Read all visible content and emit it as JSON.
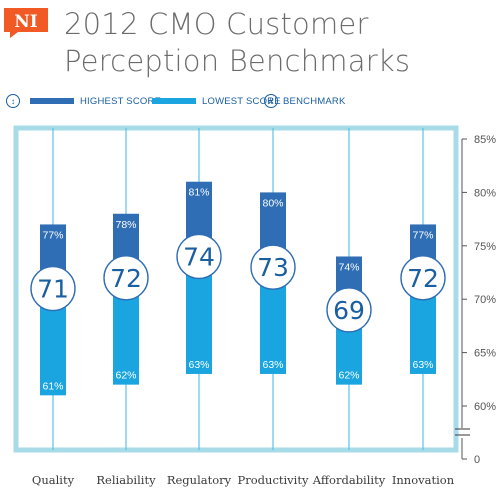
{
  "logo": {
    "text": "NI"
  },
  "header": {
    "title_line1": "2012 CMO Customer",
    "title_line2": "Perception Benchmarks"
  },
  "legend": {
    "highest": "HIGHEST SCORE",
    "lowest": "LOWEST SCORE",
    "benchmark": "BENCHMARK"
  },
  "colors": {
    "highest": "#2f6db5",
    "lowest": "#1aa5e0",
    "benchmark_text": "#1a5fa0",
    "frame": "#a6dbe7",
    "stem": "#5cc3e3",
    "logo": "#f15a24"
  },
  "chart_data": {
    "type": "range-bar",
    "title": "2012 CMO Customer Perception Benchmarks",
    "categories": [
      "Quality",
      "Reliability",
      "Regulatory",
      "Productivity",
      "Affordability",
      "Innovation"
    ],
    "series": [
      {
        "name": "HIGHEST SCORE",
        "values": [
          77,
          78,
          81,
          80,
          74,
          77
        ]
      },
      {
        "name": "LOWEST SCORE",
        "values": [
          61,
          62,
          63,
          63,
          62,
          63
        ]
      },
      {
        "name": "BENCHMARK",
        "values": [
          71,
          72,
          74,
          73,
          69,
          72
        ]
      }
    ],
    "value_labels": {
      "highest": [
        "77%",
        "78%",
        "81%",
        "80%",
        "74%",
        "77%"
      ],
      "lowest": [
        "61%",
        "62%",
        "63%",
        "63%",
        "62%",
        "63%"
      ]
    },
    "y_ticks": [
      85,
      80,
      75,
      70,
      65,
      60
    ],
    "y_tick_labels": [
      "85%",
      "80%",
      "75%",
      "70%",
      "65%",
      "60%",
      "0"
    ],
    "ylim": [
      60,
      85
    ],
    "axis_break": true,
    "grid": false,
    "legend_position": "top"
  }
}
